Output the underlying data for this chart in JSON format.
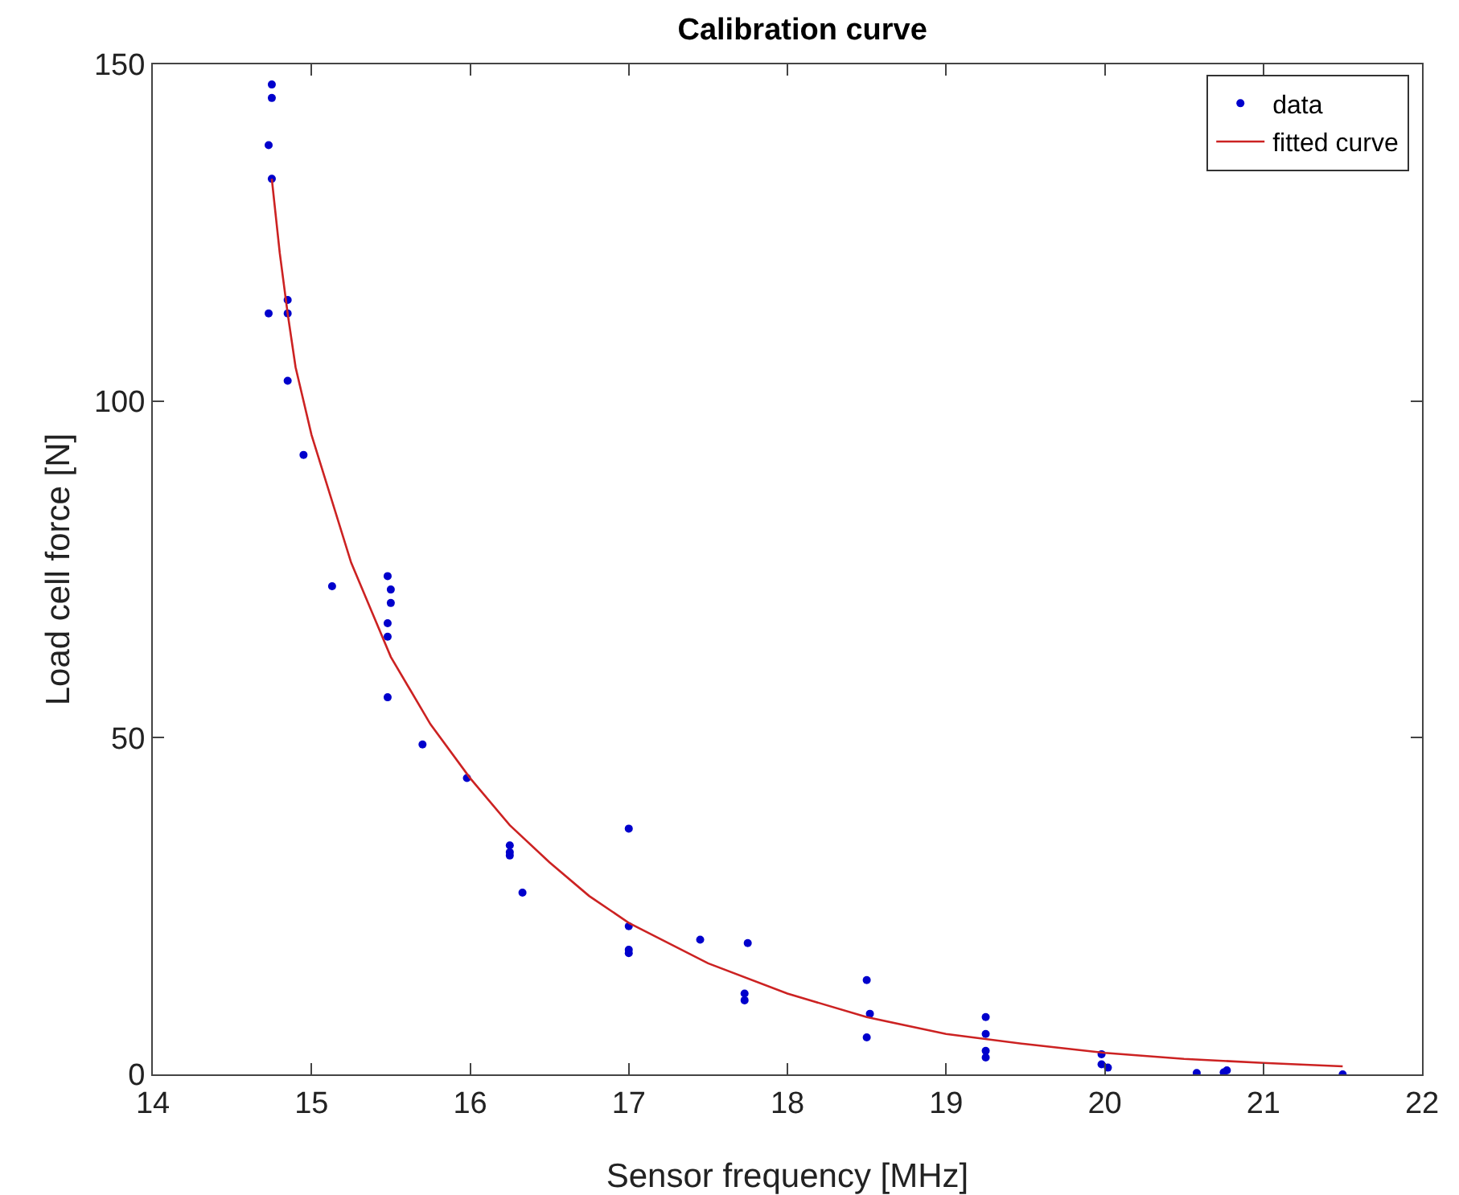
{
  "chart_data": {
    "type": "scatter",
    "title": "Calibration curve",
    "xlabel": "Sensor frequency [MHz]",
    "ylabel": "Load cell force [N]",
    "xlim": [
      14,
      22
    ],
    "xticks": [
      14,
      15,
      16,
      17,
      18,
      19,
      20,
      21,
      22
    ],
    "ylim": [
      0,
      150
    ],
    "yticks": [
      0,
      50,
      100,
      150
    ],
    "grid": false,
    "legend": "top right",
    "series": [
      {
        "name": "data",
        "marker": "circle",
        "color": "#0000cc",
        "x": [
          14.75,
          14.75,
          14.73,
          14.75,
          14.73,
          14.85,
          14.85,
          14.85,
          14.95,
          15.13,
          15.48,
          15.5,
          15.5,
          15.48,
          15.48,
          15.48,
          15.7,
          15.98,
          16.25,
          16.25,
          16.25,
          16.33,
          17,
          17,
          17,
          17,
          17.45,
          17.75,
          17.73,
          17.73,
          18.5,
          18.52,
          18.5,
          19.25,
          19.25,
          19.25,
          19.25,
          19.98,
          19.98,
          20.02,
          20.58,
          20.75,
          20.77,
          21.5
        ],
        "values": [
          147,
          145,
          138,
          133,
          113,
          115,
          113,
          103,
          92,
          72.5,
          74,
          72,
          70,
          67,
          65,
          56,
          49,
          44,
          34,
          33,
          32.5,
          27,
          36.5,
          22,
          18.5,
          18,
          20,
          19.5,
          12,
          11,
          14,
          9,
          5.5,
          8.5,
          6,
          3.5,
          2.5,
          3,
          1.5,
          1,
          0.2,
          0.3,
          0.6,
          0
        ]
      },
      {
        "name": "fitted curve",
        "type": "line",
        "color": "#cc2222",
        "line_style": "solid",
        "x": [
          14.75,
          14.8,
          14.85,
          14.9,
          15,
          15.25,
          15.5,
          15.75,
          16,
          16.25,
          16.5,
          16.75,
          17,
          17.5,
          18,
          18.5,
          19,
          19.5,
          20,
          20.5,
          21,
          21.5
        ],
        "values": [
          133,
          122,
          113,
          105,
          95,
          76,
          62,
          52,
          44,
          37,
          31.5,
          26.5,
          22.5,
          16.5,
          12,
          8.5,
          6,
          4.5,
          3.2,
          2.3,
          1.7,
          1.2
        ]
      }
    ]
  }
}
